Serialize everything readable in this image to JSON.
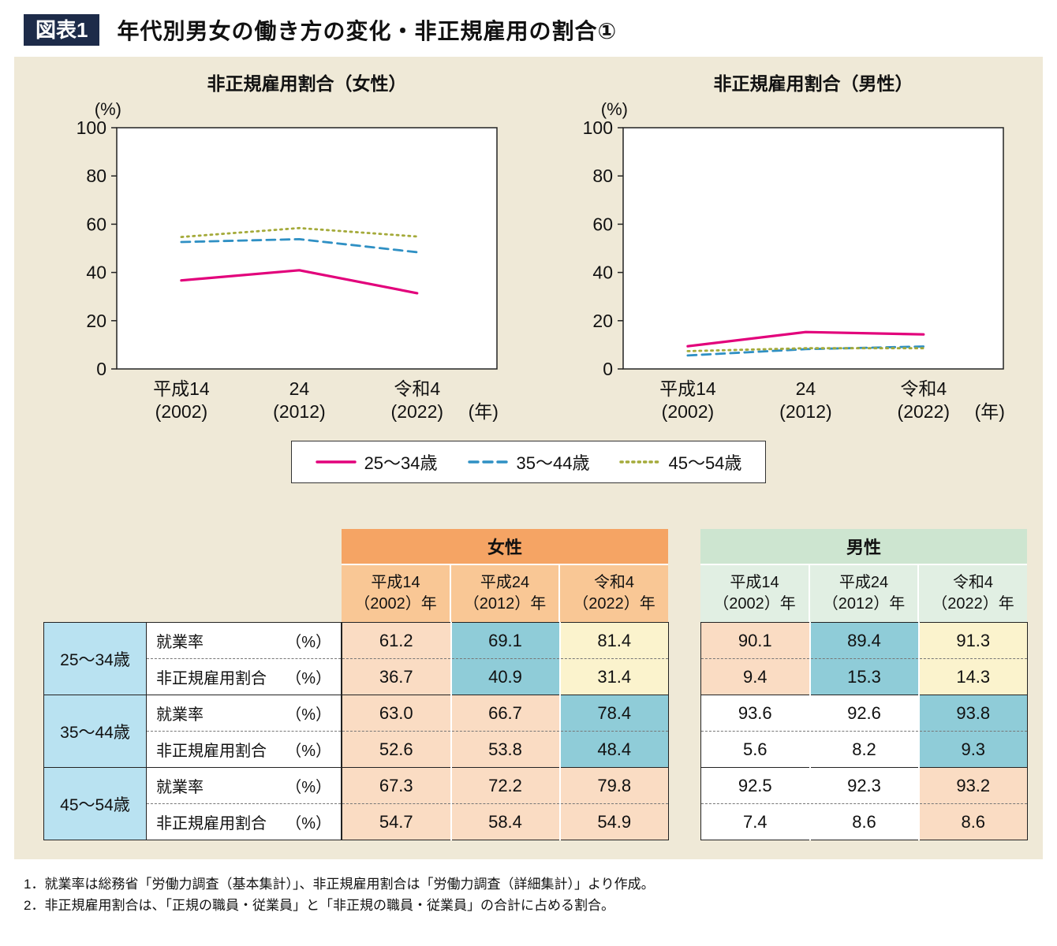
{
  "header": {
    "badge": "図表1",
    "title": "年代別男女の働き方の変化・非正規雇用の割合①"
  },
  "chart_data": [
    {
      "type": "line",
      "title": "非正規雇用割合（女性）",
      "categories": [
        "平成14（2002）",
        "24（2012）",
        "令和4（2022）"
      ],
      "x_tick_lines": [
        [
          "平成14",
          "(2002)"
        ],
        [
          "24",
          "(2012)"
        ],
        [
          "令和4",
          "(2022)"
        ]
      ],
      "x_suffix": "(年)",
      "ylabel": "(%)",
      "ylim": [
        0,
        100
      ],
      "y_ticks": [
        0,
        20,
        40,
        60,
        80,
        100
      ],
      "grid": false,
      "series": [
        {
          "name": "25〜34歳",
          "style": "solid",
          "color": "#e2017b",
          "values": [
            36.7,
            40.9,
            31.4
          ]
        },
        {
          "name": "35〜44歳",
          "style": "dashed",
          "color": "#2f90c4",
          "values": [
            52.6,
            53.8,
            48.4
          ]
        },
        {
          "name": "45〜54歳",
          "style": "dotted",
          "color": "#a4aa3a",
          "values": [
            54.7,
            58.4,
            54.9
          ]
        }
      ]
    },
    {
      "type": "line",
      "title": "非正規雇用割合（男性）",
      "categories": [
        "平成14（2002）",
        "24（2012）",
        "令和4（2022）"
      ],
      "x_tick_lines": [
        [
          "平成14",
          "(2002)"
        ],
        [
          "24",
          "(2012)"
        ],
        [
          "令和4",
          "(2022)"
        ]
      ],
      "x_suffix": "(年)",
      "ylabel": "(%)",
      "ylim": [
        0,
        100
      ],
      "y_ticks": [
        0,
        20,
        40,
        60,
        80,
        100
      ],
      "grid": false,
      "series": [
        {
          "name": "25〜34歳",
          "style": "solid",
          "color": "#e2017b",
          "values": [
            9.4,
            15.3,
            14.3
          ]
        },
        {
          "name": "35〜44歳",
          "style": "dashed",
          "color": "#2f90c4",
          "values": [
            5.6,
            8.2,
            9.3
          ]
        },
        {
          "name": "45〜54歳",
          "style": "dotted",
          "color": "#a4aa3a",
          "values": [
            7.4,
            8.6,
            8.6
          ]
        }
      ]
    }
  ],
  "legend": {
    "items": [
      "25〜34歳",
      "35〜44歳",
      "45〜54歳"
    ]
  },
  "tables": {
    "women_title": "女性",
    "men_title": "男性",
    "col_headers": [
      [
        "平成14",
        "（2002）年"
      ],
      [
        "平成24",
        "（2012）年"
      ],
      [
        "令和4",
        "（2022）年"
      ]
    ],
    "groups": [
      {
        "age": "25〜34歳",
        "rows": [
          {
            "label": "就業率",
            "unit": "（%）",
            "women": [
              "61.2",
              "69.1",
              "81.4"
            ],
            "women_colors": [
              "peach",
              "blue",
              "yellow"
            ],
            "men": [
              "90.1",
              "89.4",
              "91.3"
            ],
            "men_colors": [
              "peach",
              "blue",
              "yellow"
            ]
          },
          {
            "label": "非正規雇用割合",
            "unit": "（%）",
            "women": [
              "36.7",
              "40.9",
              "31.4"
            ],
            "women_colors": [
              "peach",
              "blue",
              "yellow"
            ],
            "men": [
              "9.4",
              "15.3",
              "14.3"
            ],
            "men_colors": [
              "peach",
              "blue",
              "yellow"
            ]
          }
        ]
      },
      {
        "age": "35〜44歳",
        "rows": [
          {
            "label": "就業率",
            "unit": "（%）",
            "women": [
              "63.0",
              "66.7",
              "78.4"
            ],
            "women_colors": [
              "peach",
              "peach",
              "blue"
            ],
            "men": [
              "93.6",
              "92.6",
              "93.8"
            ],
            "men_colors": [
              "white",
              "white",
              "blue"
            ]
          },
          {
            "label": "非正規雇用割合",
            "unit": "（%）",
            "women": [
              "52.6",
              "53.8",
              "48.4"
            ],
            "women_colors": [
              "peach",
              "peach",
              "blue"
            ],
            "men": [
              "5.6",
              "8.2",
              "9.3"
            ],
            "men_colors": [
              "white",
              "white",
              "blue"
            ]
          }
        ]
      },
      {
        "age": "45〜54歳",
        "rows": [
          {
            "label": "就業率",
            "unit": "（%）",
            "women": [
              "67.3",
              "72.2",
              "79.8"
            ],
            "women_colors": [
              "peach",
              "peach",
              "peach"
            ],
            "men": [
              "92.5",
              "92.3",
              "93.2"
            ],
            "men_colors": [
              "white",
              "white",
              "peach"
            ]
          },
          {
            "label": "非正規雇用割合",
            "unit": "（%）",
            "women": [
              "54.7",
              "58.4",
              "54.9"
            ],
            "women_colors": [
              "peach",
              "peach",
              "peach"
            ],
            "men": [
              "7.4",
              "8.6",
              "8.6"
            ],
            "men_colors": [
              "white",
              "white",
              "peach"
            ]
          }
        ]
      }
    ],
    "colors": {
      "women_header": "#f5a464",
      "women_subheader": "#f9c795",
      "men_header": "#cde5d0",
      "men_subheader": "#e1efe3",
      "age_label_bg": "#b9e2f1",
      "peach": "#fadcc3",
      "blue": "#8fccd8",
      "yellow": "#fbf3cd",
      "white": "#ffffff"
    }
  },
  "footnotes": [
    "1．就業率は総務省「労働力調査（基本集計）」、非正規雇用割合は「労働力調査（詳細集計）」より作成。",
    "2．非正規雇用割合は、「正規の職員・従業員」と「非正規の職員・従業員」の合計に占める割合。"
  ],
  "accent_colors": {
    "badge_bg": "#1d2b49",
    "panel_bg": "#efe9d7",
    "line_25_34": "#e2017b",
    "line_35_44": "#2f90c4",
    "line_45_54": "#a4aa3a"
  }
}
